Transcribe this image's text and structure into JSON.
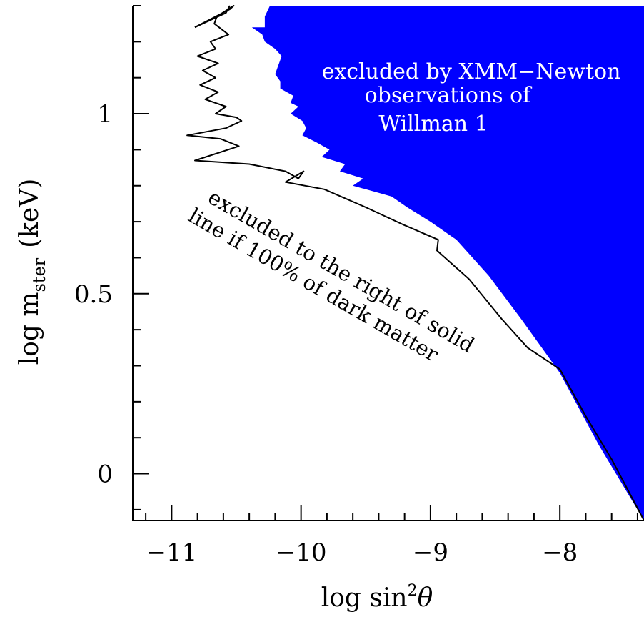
{
  "chart_data": {
    "type": "area",
    "xlabel": {
      "main": "log sin",
      "sup": "2",
      "theta": "θ"
    },
    "ylabel": {
      "pre": "log m",
      "sub": "ster",
      "post": "(keV)"
    },
    "xlim": [
      -11.3,
      -7.35
    ],
    "ylim": [
      -0.13,
      1.3
    ],
    "x_ticks": [
      {
        "value": -11,
        "label": "−11"
      },
      {
        "value": -10,
        "label": "−10"
      },
      {
        "value": -9,
        "label": "−9"
      },
      {
        "value": -8,
        "label": "−8"
      }
    ],
    "y_ticks": [
      {
        "value": 0,
        "label": "0"
      },
      {
        "value": 0.5,
        "label": "0.5"
      },
      {
        "value": 1,
        "label": "1"
      }
    ],
    "grid": false,
    "legend": "none",
    "colors": {
      "excluded_fill": "#0000ff",
      "line": "#000000"
    },
    "annotations": {
      "xmm": [
        "excluded by XMM−Newton",
        "observations of",
        "Willman 1"
      ],
      "dm": [
        "excluded to the right of solid",
        "line if 100% of dark matter"
      ]
    },
    "series": [
      {
        "kind": "filled-region",
        "points": [
          [
            -10.24,
            1.3
          ],
          [
            -10.28,
            1.27
          ],
          [
            -10.28,
            1.24
          ],
          [
            -10.38,
            1.24
          ],
          [
            -10.3,
            1.22
          ],
          [
            -10.28,
            1.2
          ],
          [
            -10.2,
            1.18
          ],
          [
            -10.15,
            1.16
          ],
          [
            -10.18,
            1.13
          ],
          [
            -10.2,
            1.11
          ],
          [
            -10.16,
            1.09
          ],
          [
            -10.16,
            1.07
          ],
          [
            -10.06,
            1.05
          ],
          [
            -10.08,
            1.03
          ],
          [
            -10.02,
            1.02
          ],
          [
            -10.08,
            1.0
          ],
          [
            -9.99,
            0.98
          ],
          [
            -9.96,
            0.96
          ],
          [
            -9.99,
            0.94
          ],
          [
            -9.88,
            0.92
          ],
          [
            -9.78,
            0.9
          ],
          [
            -9.84,
            0.88
          ],
          [
            -9.66,
            0.86
          ],
          [
            -9.7,
            0.84
          ],
          [
            -9.52,
            0.82
          ],
          [
            -9.6,
            0.8
          ],
          [
            -9.4,
            0.78
          ],
          [
            -9.3,
            0.77
          ],
          [
            -9.18,
            0.74
          ],
          [
            -9.0,
            0.7
          ],
          [
            -8.8,
            0.65
          ],
          [
            -8.55,
            0.55
          ],
          [
            -8.3,
            0.43
          ],
          [
            -8.0,
            0.28
          ],
          [
            -7.7,
            0.08
          ],
          [
            -7.35,
            -0.13
          ],
          [
            -7.35,
            1.3
          ]
        ]
      },
      {
        "kind": "solid-line",
        "points": [
          [
            -10.82,
            1.24
          ],
          [
            -10.58,
            1.28
          ],
          [
            -10.55,
            1.3
          ]
        ]
      },
      {
        "kind": "solid-line",
        "points": [
          [
            -10.82,
            1.24
          ],
          [
            -10.55,
            1.29
          ],
          [
            -10.52,
            1.3
          ],
          [
            -10.65,
            1.27
          ],
          [
            -10.67,
            1.25
          ],
          [
            -10.56,
            1.22
          ],
          [
            -10.7,
            1.2
          ],
          [
            -10.66,
            1.18
          ],
          [
            -10.8,
            1.16
          ],
          [
            -10.64,
            1.14
          ],
          [
            -10.76,
            1.12
          ],
          [
            -10.66,
            1.1
          ],
          [
            -10.78,
            1.08
          ],
          [
            -10.64,
            1.06
          ],
          [
            -10.74,
            1.04
          ],
          [
            -10.58,
            1.02
          ],
          [
            -10.66,
            1.0
          ],
          [
            -10.5,
            0.99
          ],
          [
            -10.46,
            0.98
          ],
          [
            -10.58,
            0.96
          ],
          [
            -10.88,
            0.94
          ],
          [
            -10.62,
            0.93
          ],
          [
            -10.48,
            0.91
          ],
          [
            -10.82,
            0.87
          ],
          [
            -10.4,
            0.86
          ],
          [
            -10.12,
            0.84
          ],
          [
            -10.02,
            0.82
          ],
          [
            -9.98,
            0.84
          ],
          [
            -10.12,
            0.81
          ],
          [
            -9.82,
            0.79
          ],
          [
            -9.5,
            0.74
          ],
          [
            -9.2,
            0.69
          ],
          [
            -8.94,
            0.65
          ],
          [
            -8.95,
            0.62
          ],
          [
            -8.7,
            0.54
          ],
          [
            -8.45,
            0.43
          ],
          [
            -8.25,
            0.35
          ],
          [
            -8.0,
            0.29
          ],
          [
            -7.8,
            0.16
          ],
          [
            -7.6,
            0.04
          ],
          [
            -7.35,
            -0.13
          ]
        ]
      }
    ]
  }
}
